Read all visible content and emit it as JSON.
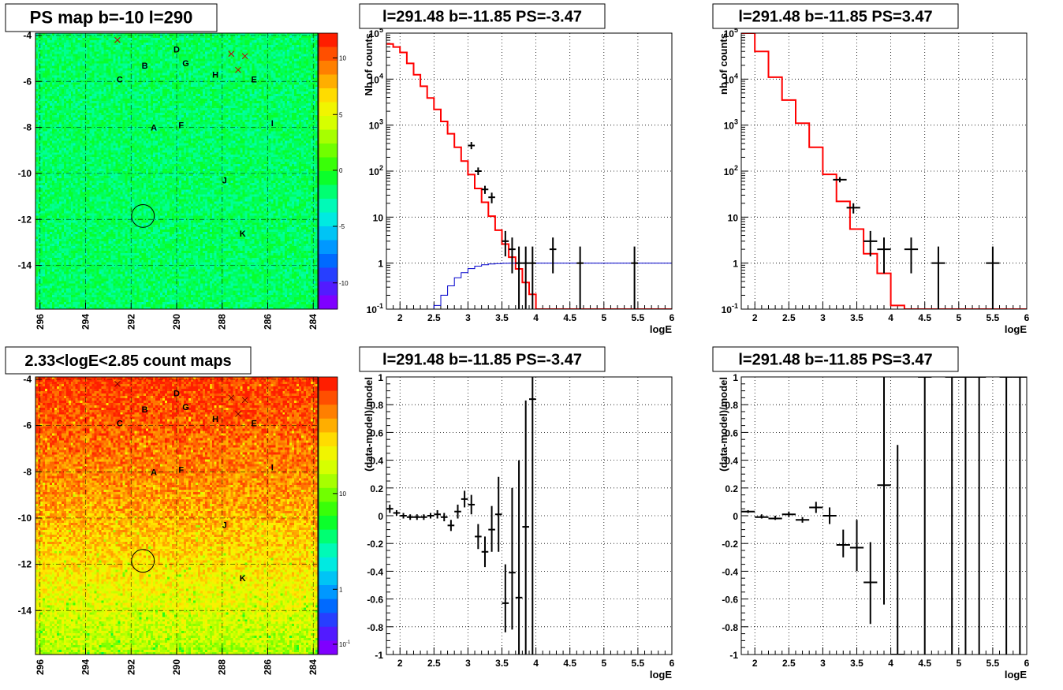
{
  "palette": {
    "map_stops": [
      "#7f00ff",
      "#3d28ff",
      "#0066ff",
      "#00aaff",
      "#00e8e8",
      "#00ffaa",
      "#00ff33",
      "#44ff00",
      "#99ff00",
      "#ddff00",
      "#ffee00",
      "#ffaa00",
      "#ff6600",
      "#ff1e00"
    ],
    "psmap_fill": "#33ee55",
    "model_line": "#ff0000",
    "bg_line": "#0000cc",
    "data": "#000000"
  },
  "chart_data": [
    {
      "type": "heatmap",
      "title": "PS map b=-10 l=290",
      "xlim": [
        296.2,
        283.8
      ],
      "ylim": [
        -15.9,
        -3.9
      ],
      "xticks": [
        "296",
        "294",
        "292",
        "290",
        "288",
        "286",
        "284"
      ],
      "yticks": [
        "-4",
        "-6",
        "-8",
        "-10",
        "-12",
        "-14"
      ],
      "colorbar": {
        "scale": "linear",
        "ticks": [
          "10",
          "5",
          "0",
          "-5",
          "-10"
        ]
      },
      "sources": [
        {
          "label": "A",
          "l": 291.0,
          "b": -8.0
        },
        {
          "label": "B",
          "l": 291.4,
          "b": -5.3
        },
        {
          "label": "C",
          "l": 292.5,
          "b": -5.9
        },
        {
          "label": "D",
          "l": 290.0,
          "b": -4.6
        },
        {
          "label": "E",
          "l": 286.6,
          "b": -5.9
        },
        {
          "label": "F",
          "l": 289.8,
          "b": -7.9
        },
        {
          "label": "G",
          "l": 289.6,
          "b": -5.2
        },
        {
          "label": "H",
          "l": 288.3,
          "b": -5.7
        },
        {
          "label": "I",
          "l": 285.8,
          "b": -7.8
        },
        {
          "label": "J",
          "l": 287.9,
          "b": -10.3
        },
        {
          "label": "K",
          "l": 287.1,
          "b": -12.6
        }
      ],
      "crosses": [
        [
          292.6,
          -4.2
        ],
        [
          287.6,
          -4.8
        ],
        [
          287.0,
          -4.9
        ],
        [
          287.3,
          -5.5
        ]
      ],
      "circle": {
        "l": 291.48,
        "b": -11.85,
        "r": 0.5
      }
    },
    {
      "type": "line",
      "title": "l=291.48 b=-11.85 PS=-3.47",
      "xlabel": "logE",
      "ylabel": "Nb of counts",
      "xlim": [
        1.8,
        6
      ],
      "ylim": [
        0.1,
        100000
      ],
      "yscale": "log",
      "xticks": [
        "2",
        "2.5",
        "3",
        "3.5",
        "4",
        "4.5",
        "5",
        "5.5",
        "6"
      ],
      "yticks": [
        "10^-1",
        "1",
        "10",
        "10^2",
        "10^3",
        "10^4",
        "10^5"
      ],
      "x_edges": [
        1.8,
        1.9,
        2.0,
        2.1,
        2.2,
        2.3,
        2.4,
        2.5,
        2.6,
        2.7,
        2.8,
        2.9,
        3.0,
        3.1,
        3.2,
        3.3,
        3.4,
        3.5,
        3.6,
        3.7,
        3.8,
        3.9,
        4.0,
        4.1,
        4.2,
        4.3,
        4.4,
        4.5,
        4.6,
        4.7,
        4.8,
        4.9,
        5.0,
        5.1,
        5.2,
        5.3,
        5.4,
        5.5,
        5.6,
        5.7,
        5.8,
        5.9,
        6.0
      ],
      "series": [
        {
          "values": [
            58000,
            50000,
            38000,
            22000,
            12500,
            7000,
            3900,
            2200,
            1200,
            650,
            330,
            165,
            84,
            42,
            21,
            10.5,
            5.2,
            2.6,
            1.35,
            0.75,
            0.38,
            0.21,
            0.1,
            0.1,
            0.1,
            0.1,
            0.1,
            0.1,
            0.1,
            0.1,
            0.1,
            0.1,
            0.1,
            0.1,
            0.1,
            0.1,
            0.1,
            0.1,
            0.1,
            0.1,
            0.1,
            0.1
          ]
        },
        {
          "values": [
            0.1,
            0.1,
            0.1,
            0.1,
            0.1,
            0.1,
            0.1,
            0.12,
            0.2,
            0.32,
            0.48,
            0.62,
            0.76,
            0.86,
            0.92,
            0.96,
            0.98,
            0.99,
            1,
            1,
            1,
            1,
            1,
            1,
            1,
            1,
            1,
            1,
            1,
            1,
            1,
            1,
            1,
            1,
            1,
            1,
            1,
            1,
            1,
            1,
            1,
            1,
            1
          ]
        }
      ],
      "points": [
        {
          "x": 3.05,
          "y": 360,
          "lo": 300,
          "hi": 430
        },
        {
          "x": 3.15,
          "y": 100,
          "lo": 82,
          "hi": 120
        },
        {
          "x": 3.25,
          "y": 40,
          "lo": 32,
          "hi": 48
        },
        {
          "x": 3.35,
          "y": 27,
          "lo": 20,
          "hi": 34
        },
        {
          "x": 3.55,
          "y": 3,
          "lo": 1.4,
          "hi": 5
        },
        {
          "x": 3.65,
          "y": 2,
          "lo": 0.6,
          "hi": 3.6
        },
        {
          "x": 3.75,
          "y": 1,
          "lo": 0.1,
          "hi": 2.3
        },
        {
          "x": 3.85,
          "y": 1,
          "lo": 0.1,
          "hi": 2.3
        },
        {
          "x": 3.95,
          "y": 1,
          "lo": 0.1,
          "hi": 2.3
        },
        {
          "x": 4.25,
          "y": 2,
          "lo": 0.6,
          "hi": 3.6
        },
        {
          "x": 4.65,
          "y": 1,
          "lo": 0.1,
          "hi": 2.3
        },
        {
          "x": 5.45,
          "y": 1,
          "lo": 0.1,
          "hi": 2.3
        }
      ]
    },
    {
      "type": "line",
      "title": "l=291.48 b=-11.85 PS=3.47",
      "xlabel": "logE",
      "ylabel": "nb of counts",
      "xlim": [
        1.8,
        6
      ],
      "ylim": [
        0.1,
        100000
      ],
      "yscale": "log",
      "xticks": [
        "2",
        "2.5",
        "3",
        "3.5",
        "4",
        "4.5",
        "5",
        "5.5",
        "6"
      ],
      "yticks": [
        "10^-1",
        "1",
        "10",
        "10^2",
        "10^3",
        "10^4",
        "10^5"
      ],
      "x_edges": [
        1.8,
        2.0,
        2.2,
        2.4,
        2.6,
        2.8,
        3.0,
        3.2,
        3.4,
        3.6,
        3.8,
        4.0,
        4.2,
        4.4,
        4.6,
        4.8,
        5.0,
        5.2,
        5.4,
        5.6,
        5.8,
        6.0
      ],
      "series": [
        {
          "values": [
            100000,
            40000,
            11000,
            3500,
            1100,
            330,
            85,
            22,
            5.5,
            1.6,
            0.6,
            0.12,
            0.1,
            0.1,
            0.1,
            0.1,
            0.1,
            0.1,
            0.1,
            0.1,
            0.1
          ]
        }
      ],
      "points": [
        {
          "x": 3.25,
          "y": 65,
          "lo": 57,
          "hi": 74
        },
        {
          "x": 3.45,
          "y": 16,
          "lo": 12,
          "hi": 20
        },
        {
          "x": 3.7,
          "y": 3,
          "lo": 1.4,
          "hi": 5
        },
        {
          "x": 3.9,
          "y": 2,
          "lo": 0.6,
          "hi": 3.6
        },
        {
          "x": 4.3,
          "y": 2,
          "lo": 0.6,
          "hi": 3.6
        },
        {
          "x": 4.7,
          "y": 1,
          "lo": 0.1,
          "hi": 2.3
        },
        {
          "x": 5.5,
          "y": 1,
          "lo": 0.1,
          "hi": 2.3
        }
      ]
    },
    {
      "type": "heatmap",
      "title": "2.33<logE<2.85 count maps",
      "xlim": [
        296.2,
        283.8
      ],
      "ylim": [
        -15.9,
        -3.9
      ],
      "xticks": [
        "296",
        "294",
        "292",
        "290",
        "288",
        "286",
        "284"
      ],
      "yticks": [
        "-4",
        "-6",
        "-8",
        "-10",
        "-12",
        "-14"
      ],
      "colorbar": {
        "scale": "log",
        "ticks": [
          "10",
          "1",
          "10^-1"
        ]
      },
      "sources": "same",
      "crosses": "same",
      "circle": "same"
    },
    {
      "type": "scatter",
      "title": "l=291.48 b=-11.85 PS=-3.47",
      "xlabel": "logE",
      "ylabel": "(data-model)/model",
      "xlim": [
        1.8,
        6
      ],
      "ylim": [
        -1,
        1
      ],
      "xticks": [
        "2",
        "2.5",
        "3",
        "3.5",
        "4",
        "4.5",
        "5",
        "5.5",
        "6"
      ],
      "yticks": [
        "-1",
        "-0.8",
        "-0.6",
        "-0.4",
        "-0.2",
        "0",
        "0.2",
        "0.4",
        "0.6",
        "0.8",
        "1"
      ],
      "points": [
        {
          "x": 1.85,
          "y": 0.05,
          "lo": 0.02,
          "hi": 0.08
        },
        {
          "x": 1.95,
          "y": 0.02,
          "lo": 0,
          "hi": 0.04
        },
        {
          "x": 2.05,
          "y": 0,
          "lo": -0.02,
          "hi": 0.02
        },
        {
          "x": 2.15,
          "y": -0.01,
          "lo": -0.03,
          "hi": 0.01
        },
        {
          "x": 2.25,
          "y": -0.01,
          "lo": -0.03,
          "hi": 0.01
        },
        {
          "x": 2.35,
          "y": -0.01,
          "lo": -0.03,
          "hi": 0.01
        },
        {
          "x": 2.45,
          "y": 0,
          "lo": -0.02,
          "hi": 0.02
        },
        {
          "x": 2.55,
          "y": 0.01,
          "lo": -0.02,
          "hi": 0.04
        },
        {
          "x": 2.65,
          "y": -0.01,
          "lo": -0.04,
          "hi": 0.02
        },
        {
          "x": 2.75,
          "y": -0.07,
          "lo": -0.11,
          "hi": -0.03
        },
        {
          "x": 2.85,
          "y": 0.03,
          "lo": -0.02,
          "hi": 0.08
        },
        {
          "x": 2.95,
          "y": 0.12,
          "lo": 0.06,
          "hi": 0.18
        },
        {
          "x": 3.05,
          "y": 0.08,
          "lo": 0.01,
          "hi": 0.15
        },
        {
          "x": 3.15,
          "y": -0.15,
          "lo": -0.24,
          "hi": -0.06
        },
        {
          "x": 3.25,
          "y": -0.26,
          "lo": -0.37,
          "hi": -0.15
        },
        {
          "x": 3.35,
          "y": -0.1,
          "lo": -0.26,
          "hi": 0.07
        },
        {
          "x": 3.45,
          "y": 0.01,
          "lo": -0.26,
          "hi": 0.28
        },
        {
          "x": 3.55,
          "y": -0.63,
          "lo": -0.84,
          "hi": -0.35
        },
        {
          "x": 3.65,
          "y": -0.41,
          "lo": -0.82,
          "hi": 0.2
        },
        {
          "x": 3.75,
          "y": -0.59,
          "lo": -1,
          "hi": 0.4
        },
        {
          "x": 3.85,
          "y": -0.08,
          "lo": -1,
          "hi": 0.83
        },
        {
          "x": 3.95,
          "y": 0.84,
          "lo": -1,
          "hi": 1
        }
      ]
    },
    {
      "type": "scatter",
      "title": "l=291.48 b=-11.85 PS=3.47",
      "xlabel": "logE",
      "ylabel": "(data-model)/model",
      "xlim": [
        1.8,
        6
      ],
      "ylim": [
        -1,
        1
      ],
      "xticks": [
        "2",
        "2.5",
        "3",
        "3.5",
        "4",
        "4.5",
        "5",
        "5.5",
        "6"
      ],
      "yticks": [
        "-1",
        "-0.8",
        "-0.6",
        "-0.4",
        "-0.2",
        "0",
        "0.2",
        "0.4",
        "0.6",
        "0.8",
        "1"
      ],
      "points": [
        {
          "x": 1.9,
          "y": 0.03,
          "lo": 0.02,
          "hi": 0.04
        },
        {
          "x": 2.1,
          "y": -0.01,
          "lo": -0.02,
          "hi": 0.01
        },
        {
          "x": 2.3,
          "y": -0.02,
          "lo": -0.03,
          "hi": 0
        },
        {
          "x": 2.5,
          "y": 0.01,
          "lo": -0.01,
          "hi": 0.03
        },
        {
          "x": 2.7,
          "y": -0.03,
          "lo": -0.05,
          "hi": -0.01
        },
        {
          "x": 2.9,
          "y": 0.06,
          "lo": 0.02,
          "hi": 0.1
        },
        {
          "x": 3.1,
          "y": 0,
          "lo": -0.06,
          "hi": 0.06
        },
        {
          "x": 3.3,
          "y": -0.21,
          "lo": -0.3,
          "hi": -0.1
        },
        {
          "x": 3.5,
          "y": -0.23,
          "lo": -0.4,
          "hi": -0.03
        },
        {
          "x": 3.7,
          "y": -0.48,
          "lo": -0.78,
          "hi": -0.19
        },
        {
          "x": 3.9,
          "y": 0.22,
          "lo": -0.64,
          "hi": 1
        },
        {
          "x": 4.1,
          "y": -1,
          "lo": -1,
          "hi": 0.51
        },
        {
          "x": 4.5,
          "y": 1,
          "lo": -1,
          "hi": 1
        },
        {
          "x": 4.9,
          "y": 1,
          "lo": -1,
          "hi": 1
        },
        {
          "x": 5.1,
          "y": 1,
          "lo": -1,
          "hi": 1
        },
        {
          "x": 5.3,
          "y": 1,
          "lo": -1,
          "hi": 1
        },
        {
          "x": 5.7,
          "y": 1,
          "lo": -1,
          "hi": 1
        },
        {
          "x": 5.9,
          "y": 1,
          "lo": -1,
          "hi": 1
        }
      ]
    }
  ]
}
